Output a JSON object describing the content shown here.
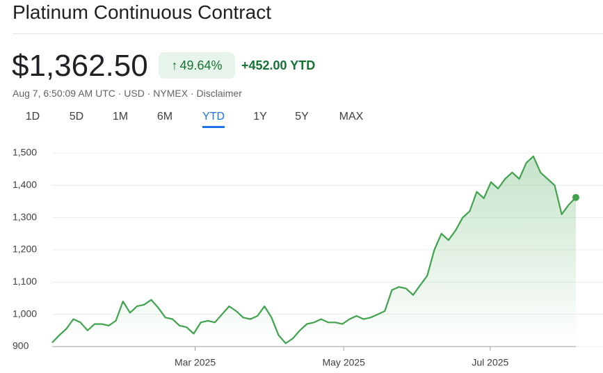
{
  "header": {
    "title": "Platinum Continuous Contract",
    "price": "$1,362.50",
    "change_percent": "49.64%",
    "change": "+452.00 YTD",
    "details": "Aug 7, 6:50:09 AM UTC · USD · NYMEX · Disclaimer"
  },
  "tabs": [
    "1D",
    "5D",
    "1M",
    "6M",
    "YTD",
    "1Y",
    "5Y",
    "MAX"
  ],
  "chart_data": {
    "type": "line",
    "color": "#3fa34d",
    "grid": true,
    "values": [
      912,
      935,
      955,
      985,
      975,
      950,
      970,
      970,
      965,
      980,
      1040,
      1005,
      1025,
      1030,
      1045,
      1020,
      990,
      985,
      965,
      960,
      940,
      975,
      980,
      975,
      1000,
      1025,
      1010,
      990,
      985,
      995,
      1025,
      990,
      935,
      910,
      925,
      950,
      970,
      975,
      985,
      975,
      975,
      970,
      985,
      995,
      985,
      990,
      1000,
      1010,
      1075,
      1085,
      1080,
      1060,
      1090,
      1120,
      1200,
      1250,
      1230,
      1260,
      1300,
      1320,
      1380,
      1360,
      1410,
      1390,
      1420,
      1440,
      1420,
      1470,
      1490,
      1440,
      1420,
      1400,
      1310,
      1340,
      1362.5
    ],
    "xlim": [
      0,
      74
    ],
    "xticks": [
      {
        "value": 20.2,
        "label": "Mar 2025"
      },
      {
        "value": 41.2,
        "label": "May 2025"
      },
      {
        "value": 61.9,
        "label": "Jul 2025"
      }
    ],
    "ylim": [
      900,
      1500
    ],
    "yticks": [
      900,
      {
        "value": 1000,
        "label": "1,000"
      },
      {
        "value": 1100,
        "label": "1,100"
      },
      {
        "value": 1200,
        "label": "1,200"
      },
      {
        "value": 1300,
        "label": "1,300"
      },
      {
        "value": 1400,
        "label": "1,400"
      },
      {
        "value": 1500,
        "label": "1,500"
      }
    ]
  }
}
